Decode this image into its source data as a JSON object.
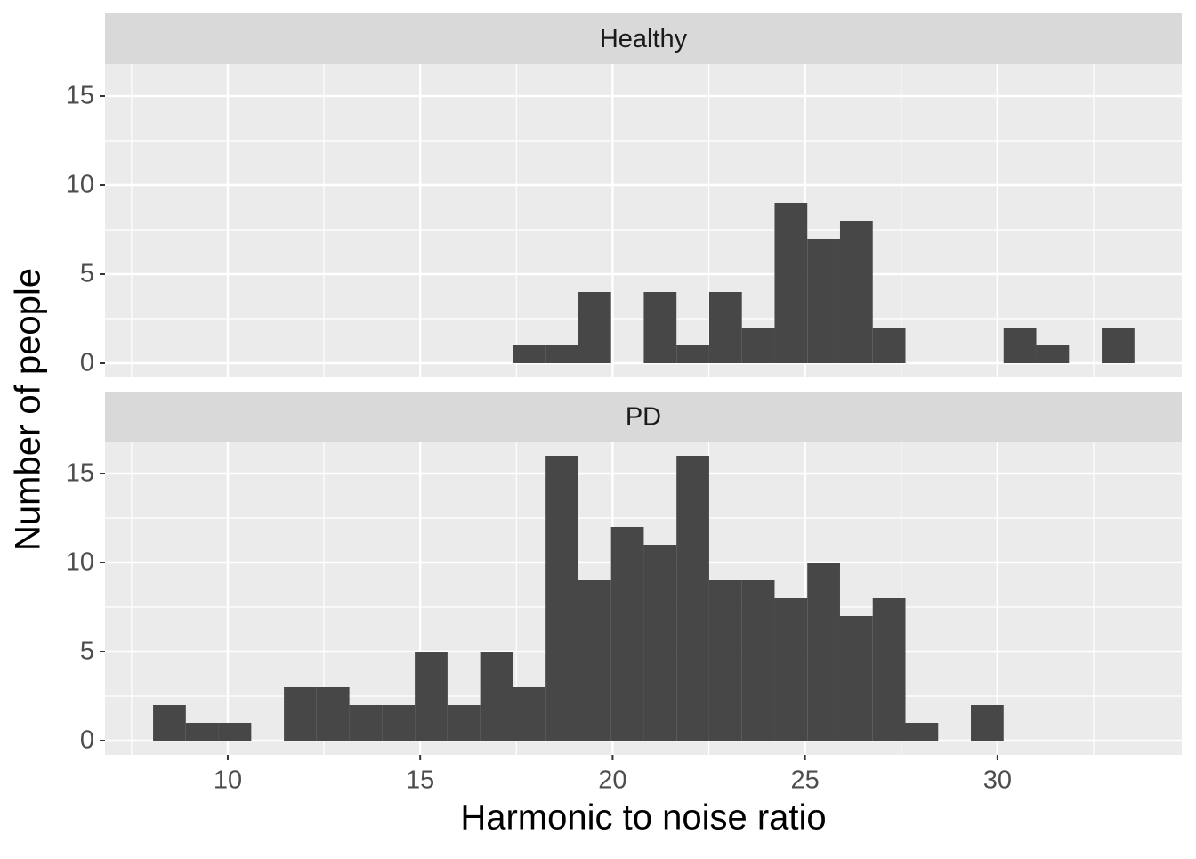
{
  "chart_data": {
    "type": "histogram",
    "xlabel": "Harmonic to noise ratio",
    "ylabel": "Number of people",
    "bins": [
      8.06,
      8.91,
      9.76,
      10.61,
      11.46,
      12.31,
      13.16,
      14.01,
      14.86,
      15.71,
      16.56,
      17.41,
      18.26,
      19.11,
      19.96,
      20.81,
      21.66,
      22.51,
      23.36,
      24.21,
      25.06,
      25.91,
      26.76,
      27.61,
      28.46,
      29.31,
      30.16,
      31.01,
      31.86,
      32.71,
      33.56
    ],
    "color": "#474747",
    "xlim": [
      6.81,
      34.79
    ],
    "xticks": [
      10,
      15,
      20,
      25,
      30
    ],
    "ylim": [
      -0.8,
      16.8
    ],
    "yticks": [
      0,
      5,
      10,
      15
    ],
    "grid": true,
    "facets": [
      {
        "title": "Healthy",
        "counts": [
          0,
          0,
          0,
          0,
          0,
          0,
          0,
          0,
          0,
          0,
          0,
          1,
          1,
          4,
          0,
          4,
          1,
          4,
          2,
          9,
          7,
          8,
          2,
          0,
          0,
          0,
          2,
          1,
          0,
          2
        ]
      },
      {
        "title": "PD",
        "counts": [
          2,
          1,
          1,
          0,
          3,
          3,
          2,
          2,
          5,
          2,
          5,
          3,
          16,
          9,
          12,
          11,
          16,
          9,
          9,
          8,
          10,
          7,
          8,
          1,
          0,
          2,
          0,
          0,
          0,
          0
        ]
      }
    ]
  }
}
